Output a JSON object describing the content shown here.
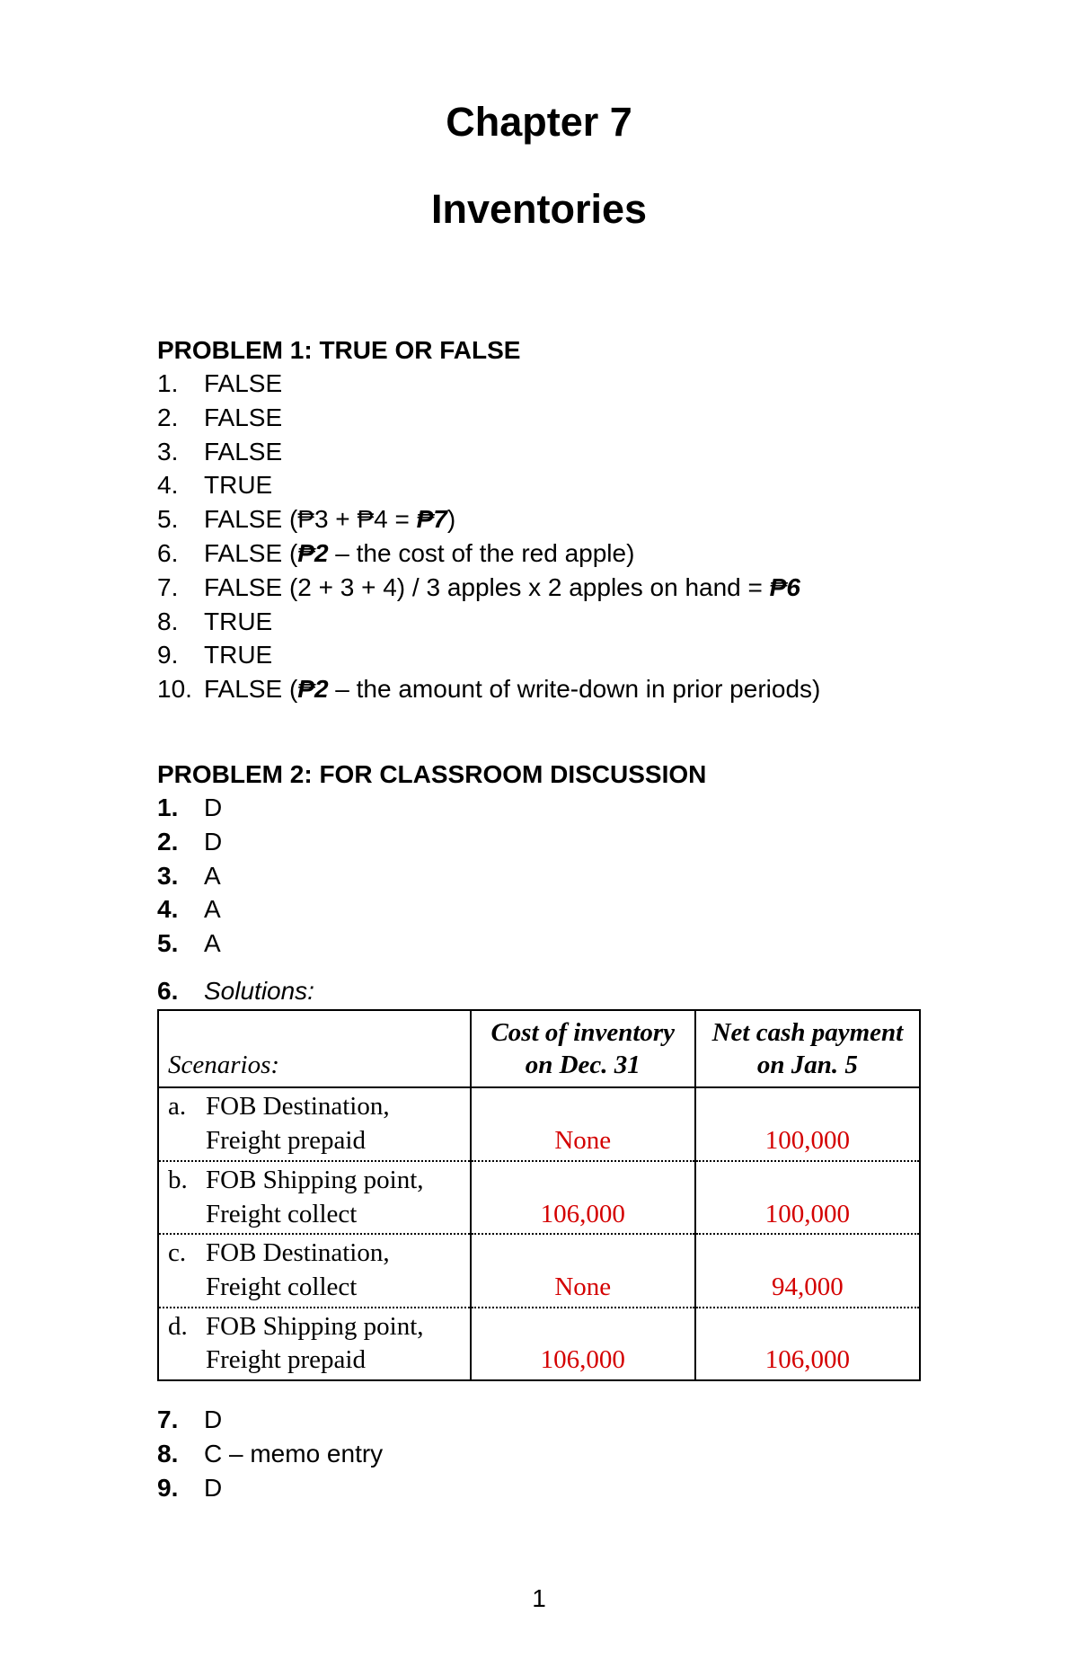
{
  "chapter": {
    "title": "Chapter 7",
    "subtitle": "Inventories"
  },
  "problem1": {
    "heading": "PROBLEM 1: TRUE OR FALSE",
    "items": [
      {
        "n": "1.",
        "text": "FALSE"
      },
      {
        "n": "2.",
        "text": "FALSE"
      },
      {
        "n": "3.",
        "text": "FALSE"
      },
      {
        "n": "4.",
        "text": "TRUE"
      },
      {
        "n": "5.",
        "prefix": "FALSE (",
        "peso1": "₱",
        "mid1": "3 + ",
        "peso2": "₱",
        "mid2": "4 = ",
        "bold": "₱7",
        "suffix": ")"
      },
      {
        "n": "6.",
        "prefix": "FALSE (",
        "bold": "₱2",
        "suffix": " – the cost of the red apple)"
      },
      {
        "n": "7.",
        "prefix": "FALSE (2 + 3 + 4) / 3 apples x 2 apples on hand = ",
        "bold": "₱6"
      },
      {
        "n": "8.",
        "text": "TRUE"
      },
      {
        "n": "9.",
        "text": "TRUE"
      },
      {
        "n": "10.",
        "prefix": "FALSE (",
        "bold": "₱2",
        "suffix": " – the amount of write-down in prior periods)"
      }
    ]
  },
  "problem2": {
    "heading": "PROBLEM 2: FOR CLASSROOM DISCUSSION",
    "items_top": [
      {
        "n": "1.",
        "text": "D"
      },
      {
        "n": "2.",
        "text": "D"
      },
      {
        "n": "3.",
        "text": "A"
      },
      {
        "n": "4.",
        "text": "A"
      },
      {
        "n": "5.",
        "text": "A"
      }
    ],
    "solutions": {
      "n": "6.",
      "label": "Solutions:"
    },
    "table": {
      "header": {
        "col1": "Scenarios:",
        "col2": "Cost of inventory on Dec. 31",
        "col3": "Net cash payment on Jan. 5"
      },
      "rows": [
        {
          "letter": "a.",
          "desc": "FOB Destination, Freight prepaid",
          "c2": "None",
          "c3": "100,000"
        },
        {
          "letter": "b.",
          "desc": "FOB Shipping point, Freight collect",
          "c2": "106,000",
          "c3": "100,000"
        },
        {
          "letter": "c.",
          "desc": "FOB Destination, Freight collect",
          "c2": "None",
          "c3": "94,000"
        },
        {
          "letter": "d.",
          "desc": "FOB Shipping point, Freight prepaid",
          "c2": "106,000",
          "c3": "106,000"
        }
      ]
    },
    "items_bottom": [
      {
        "n": "7.",
        "text": "D"
      },
      {
        "n": "8.",
        "text": "C – memo entry"
      },
      {
        "n": "9.",
        "text": "D"
      }
    ]
  },
  "page_number": "1",
  "style": {
    "red_color": "#d40000",
    "body_font": "Arial",
    "table_font": "Palatino"
  }
}
